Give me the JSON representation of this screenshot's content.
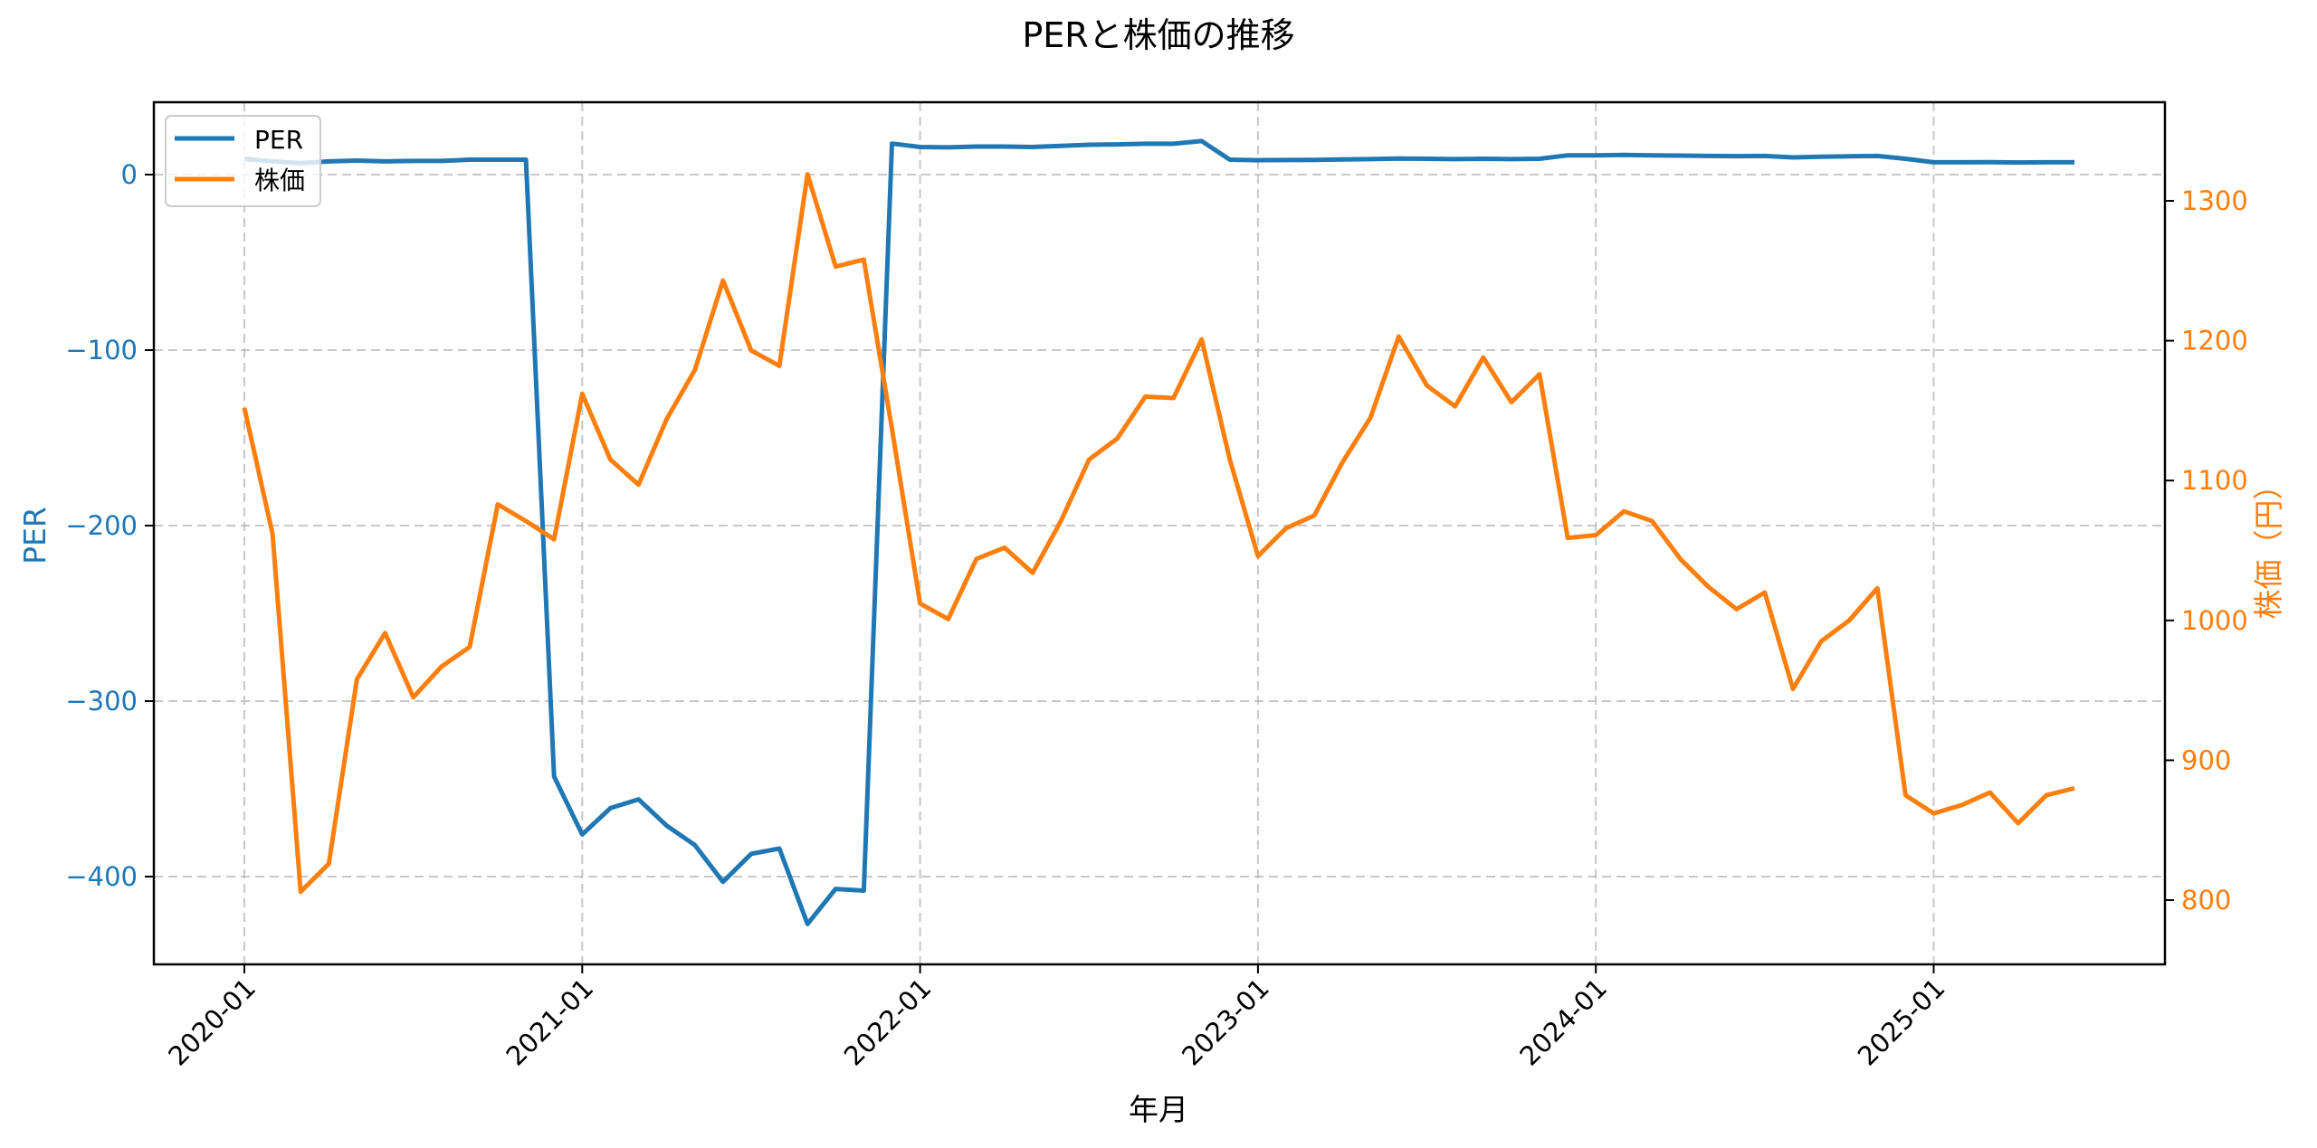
{
  "chart_data": {
    "type": "line",
    "title": "PERと株価の推移",
    "xlabel": "年月",
    "ylabel": "PER",
    "ylabel_right": "株価（円）",
    "x_ticks": [
      "2020-01",
      "2021-01",
      "2022-01",
      "2023-01",
      "2024-01",
      "2025-01"
    ],
    "y_ticks_left": [
      0,
      -100,
      -200,
      -300,
      -400
    ],
    "y_ticks_right": [
      1300,
      1200,
      1100,
      1000,
      900,
      800
    ],
    "ylim_left": [
      -452,
      41
    ],
    "ylim_right": [
      751,
      1358
    ],
    "grid": true,
    "legend_position": "upper left",
    "x": [
      "2020-01",
      "2020-02",
      "2020-03",
      "2020-04",
      "2020-05",
      "2020-06",
      "2020-07",
      "2020-08",
      "2020-09",
      "2020-10",
      "2020-11",
      "2020-12",
      "2021-01",
      "2021-02",
      "2021-03",
      "2021-04",
      "2021-05",
      "2021-06",
      "2021-07",
      "2021-08",
      "2021-09",
      "2021-10",
      "2021-11",
      "2021-12",
      "2022-01",
      "2022-02",
      "2022-03",
      "2022-04",
      "2022-05",
      "2022-06",
      "2022-07",
      "2022-08",
      "2022-09",
      "2022-10",
      "2022-11",
      "2022-12",
      "2023-01",
      "2023-02",
      "2023-03",
      "2023-04",
      "2023-05",
      "2023-06",
      "2023-07",
      "2023-08",
      "2023-09",
      "2023-10",
      "2023-11",
      "2023-12",
      "2024-01",
      "2024-02",
      "2024-03",
      "2024-04",
      "2024-05",
      "2024-06",
      "2024-07",
      "2024-08",
      "2024-09",
      "2024-10",
      "2024-11",
      "2024-12",
      "2025-01",
      "2025-02",
      "2025-03",
      "2025-04",
      "2025-05",
      "2025-06"
    ],
    "series": [
      {
        "name": "PER",
        "axis": "left",
        "color": "#1f77b4",
        "values": [
          9,
          7.5,
          6.5,
          7.5,
          8,
          7.5,
          7.8,
          7.8,
          8.5,
          8.5,
          8.5,
          -343,
          -376,
          -361,
          -356,
          -371,
          -382,
          -403,
          -387,
          -384,
          -427,
          -407,
          -408,
          17.7,
          15.7,
          15.5,
          16,
          16,
          15.7,
          16.4,
          17,
          17.2,
          17.6,
          17.6,
          19.1,
          8.5,
          8.2,
          8.3,
          8.4,
          8.6,
          8.8,
          9.2,
          9,
          8.8,
          9,
          8.8,
          9,
          11,
          11,
          11.2,
          11,
          10.8,
          10.6,
          10.5,
          10.6,
          9.8,
          10.2,
          10.4,
          10.6,
          9,
          7,
          7,
          7.1,
          6.9,
          7,
          7
        ]
      },
      {
        "name": "株価",
        "axis": "right",
        "color": "#ff7f0e",
        "values": [
          1152,
          1062,
          806,
          826,
          958,
          991,
          945,
          967,
          981,
          1083,
          1071,
          1058,
          1162,
          1115,
          1097,
          1144,
          1179,
          1243,
          1193,
          1182,
          1319,
          1253,
          1258,
          1137,
          1012,
          1001,
          1044,
          1052,
          1034,
          1071,
          1115,
          1130,
          1160,
          1159,
          1201,
          1115,
          1046,
          1066,
          1075,
          1113,
          1145,
          1203,
          1168,
          1153,
          1188,
          1156,
          1176,
          1059,
          1061,
          1078,
          1071,
          1044,
          1024,
          1008,
          1020,
          951,
          985,
          1000,
          1023,
          875,
          862,
          868,
          877,
          855,
          875,
          880
        ]
      }
    ]
  },
  "legend": {
    "items": [
      {
        "label": "PER",
        "color": "#1f77b4"
      },
      {
        "label": "株価",
        "color": "#ff7f0e"
      }
    ]
  },
  "colors": {
    "per": "#1f77b4",
    "price": "#ff7f0e",
    "grid": "#b0b0b0",
    "axes": "#000000"
  }
}
